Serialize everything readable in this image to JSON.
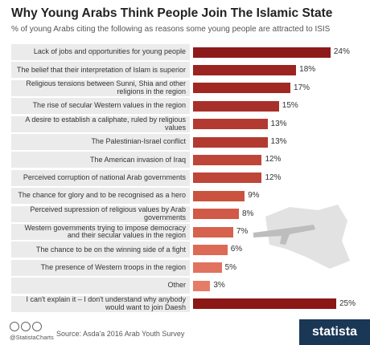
{
  "chart_data": {
    "type": "bar",
    "title": "Why Young Arabs Think People Join The Islamic State",
    "subtitle": "% of young Arabs citing the following as reasons some young people are attracted to ISIS",
    "categories": [
      "Lack of jobs and opportunities for young people",
      "The belief that their interpretation of Islam is superior",
      "Religious tensions between Sunni, Shia and other religions in the region",
      "The rise of secular Western values in the region",
      "A desire to establish a caliphate, ruled by religious values",
      "The Palestinian-Israel conflict",
      "The American invasion of Iraq",
      "Perceived corruption of national Arab governments",
      "The chance for glory and to be recognised as a hero",
      "Perceived supression of religious values by Arab governments",
      "Western governments trying to impose democracy and their secular values in the region",
      "The chance to be on the winning side of a fight",
      "The presence of Western troops in the region",
      "Other",
      "I can't explain it – I don't understand why anybody would want to join Daesh"
    ],
    "values": [
      24,
      18,
      17,
      15,
      13,
      13,
      12,
      12,
      9,
      8,
      7,
      6,
      5,
      3,
      25
    ],
    "value_labels": [
      "24%",
      "18%",
      "17%",
      "15%",
      "13%",
      "13%",
      "12%",
      "12%",
      "9%",
      "8%",
      "7%",
      "6%",
      "5%",
      "3%",
      "25%"
    ],
    "colors": [
      "#8e1b1b",
      "#9b2420",
      "#a02722",
      "#a8302a",
      "#b23a30",
      "#b23a30",
      "#bd4638",
      "#bd4638",
      "#c9533f",
      "#d05a47",
      "#d6614d",
      "#dc6a55",
      "#e0735f",
      "#e67c68",
      "#8b1717"
    ]
  },
  "footer": {
    "handle": "@StatistaCharts",
    "source": "Source: Asda'a 2016 Arab Youth Survey",
    "logo": "statista"
  }
}
